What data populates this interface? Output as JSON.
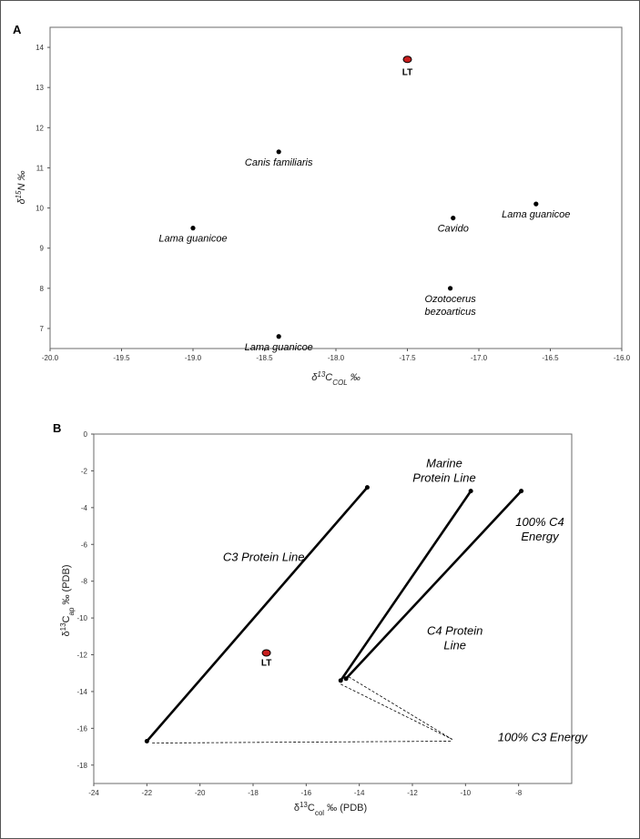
{
  "chart_data": [
    {
      "panel_label": "A",
      "type": "scatter",
      "xlabel": {
        "pre": "δ",
        "sup": "13",
        "main": "C",
        "sub": "COL",
        "post": " ‰"
      },
      "ylabel": {
        "pre": "δ",
        "sup": "15",
        "main": "N",
        "post": " ‰"
      },
      "xlim": [
        -20.0,
        -16.0
      ],
      "ylim": [
        6.5,
        14.5
      ],
      "x_ticks": [
        -20.0,
        -19.5,
        -19.0,
        -18.5,
        -18.0,
        -17.5,
        -17.0,
        -16.5,
        -16.0
      ],
      "x_tick_labels": [
        "-20.0",
        "-19.5",
        "-19.0",
        "-18.5",
        "-18.0",
        "-17.5",
        "-17.0",
        "-16.5",
        "-16.0"
      ],
      "y_ticks": [
        7,
        8,
        9,
        10,
        11,
        12,
        13,
        14
      ],
      "y_tick_labels": [
        "7",
        "8",
        "9",
        "10",
        "11",
        "12",
        "13",
        "14"
      ],
      "points": [
        {
          "x": -17.5,
          "y": 13.7,
          "label": [
            "LT"
          ],
          "highlight": true,
          "color": "#c81e1e"
        },
        {
          "x": -18.4,
          "y": 11.4,
          "label": [
            "Canis familiaris"
          ]
        },
        {
          "x": -19.0,
          "y": 9.5,
          "label": [
            "Lama guanicoe"
          ]
        },
        {
          "x": -17.18,
          "y": 9.75,
          "label": [
            "Cavido"
          ]
        },
        {
          "x": -16.6,
          "y": 10.1,
          "label": [
            "Lama guanicoe"
          ]
        },
        {
          "x": -17.2,
          "y": 8.0,
          "label": [
            "Ozotocerus",
            "bezoarticus"
          ]
        },
        {
          "x": -18.4,
          "y": 6.8,
          "label": [
            "Lama guanicoe"
          ]
        }
      ]
    },
    {
      "panel_label": "B",
      "type": "line",
      "xlabel": {
        "pre": "δ",
        "sup": "13",
        "main": "C",
        "sub": "col",
        "post": " ‰ (PDB)"
      },
      "ylabel": {
        "pre": "δ",
        "sup": "13",
        "main": "C",
        "sub": "ap",
        "post": " ‰ (PDB)"
      },
      "xlim": [
        -24,
        -6
      ],
      "ylim": [
        -19,
        0
      ],
      "x_ticks": [
        -24,
        -22,
        -20,
        -18,
        -16,
        -14,
        -12,
        -10,
        -8
      ],
      "x_tick_labels": [
        "-24",
        "-22",
        "-20",
        "-18",
        "-16",
        "-14",
        "-12",
        "-10",
        "-8"
      ],
      "y_ticks": [
        0,
        -2,
        -4,
        -6,
        -8,
        -10,
        -12,
        -14,
        -16,
        -18
      ],
      "y_tick_labels": [
        "0",
        "-2",
        "-4",
        "-6",
        "-8",
        "-10",
        "-12",
        "-14",
        "-16",
        "-18"
      ],
      "series": [
        {
          "name": "C3 Protein Line",
          "x": [
            -22.0,
            -13.7
          ],
          "y": [
            -16.7,
            -2.9
          ],
          "style": "solid"
        },
        {
          "name": "Marine Protein Line",
          "x": [
            -14.7,
            -9.8
          ],
          "y": [
            -13.4,
            -3.1
          ],
          "style": "solid"
        },
        {
          "name": "C4 Protein Line",
          "x": [
            -14.5,
            -7.9
          ],
          "y": [
            -13.3,
            -3.1
          ],
          "style": "solid"
        },
        {
          "x": [
            -21.8,
            -10.5
          ],
          "y": [
            -16.8,
            -16.7
          ],
          "style": "dashed"
        },
        {
          "x": [
            -14.7,
            -10.5
          ],
          "y": [
            -13.6,
            -16.6
          ],
          "style": "dashed"
        },
        {
          "x": [
            -14.4,
            -10.5
          ],
          "y": [
            -13.2,
            -16.6
          ],
          "style": "dashed"
        }
      ],
      "points": [
        {
          "x": -17.5,
          "y": -11.9,
          "label": "LT",
          "highlight": true,
          "color": "#c81e1e"
        }
      ],
      "annotations": [
        {
          "lines": [
            "C3 Protein Line"
          ],
          "x": -17.6,
          "y": -6.9
        },
        {
          "lines": [
            "Marine",
            "Protein Line"
          ],
          "x": -10.8,
          "y": -1.8
        },
        {
          "lines": [
            "100% C4",
            "Energy"
          ],
          "x": -7.2,
          "y": -5.0
        },
        {
          "lines": [
            "C4 Protein",
            "Line"
          ],
          "x": -10.4,
          "y": -10.9
        },
        {
          "lines": [
            "100% C3 Energy"
          ],
          "x": -7.1,
          "y": -16.7
        }
      ]
    }
  ]
}
